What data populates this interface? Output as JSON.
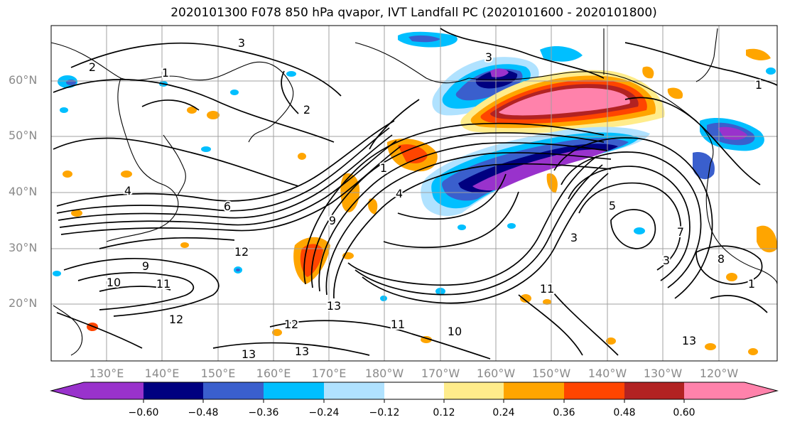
{
  "title": "2020101300 F078 850 hPa qvapor, IVT Landfall PC (2020101600 - 2020101800)",
  "map": {
    "lat_labels": [
      "60°N",
      "50°N",
      "40°N",
      "30°N",
      "20°N"
    ],
    "lon_labels": [
      "130°E",
      "140°E",
      "150°E",
      "160°E",
      "170°E",
      "180°W",
      "170°W",
      "160°W",
      "150°W",
      "140°W",
      "130°W",
      "120°W"
    ],
    "contour_labels": [
      "3",
      "2",
      "1",
      "2",
      "3",
      "1",
      "4",
      "6",
      "9",
      "10",
      "11",
      "12",
      "12",
      "13",
      "12",
      "11",
      "10",
      "13",
      "13",
      "11",
      "5",
      "3",
      "7",
      "8",
      "1",
      "13",
      "1",
      "9",
      "4",
      "3"
    ]
  },
  "colorbar": {
    "ticks": [
      "−0.60",
      "−0.48",
      "−0.36",
      "−0.24",
      "−0.12",
      "0.12",
      "0.24",
      "0.36",
      "0.48",
      "0.60"
    ],
    "colors": [
      "#9932cc",
      "#000080",
      "#3a5fcd",
      "#00bfff",
      "#b0e2ff",
      "#ffffff",
      "#ffec8b",
      "#ffa500",
      "#ff4500",
      "#b22222",
      "#ff82ab"
    ]
  }
}
